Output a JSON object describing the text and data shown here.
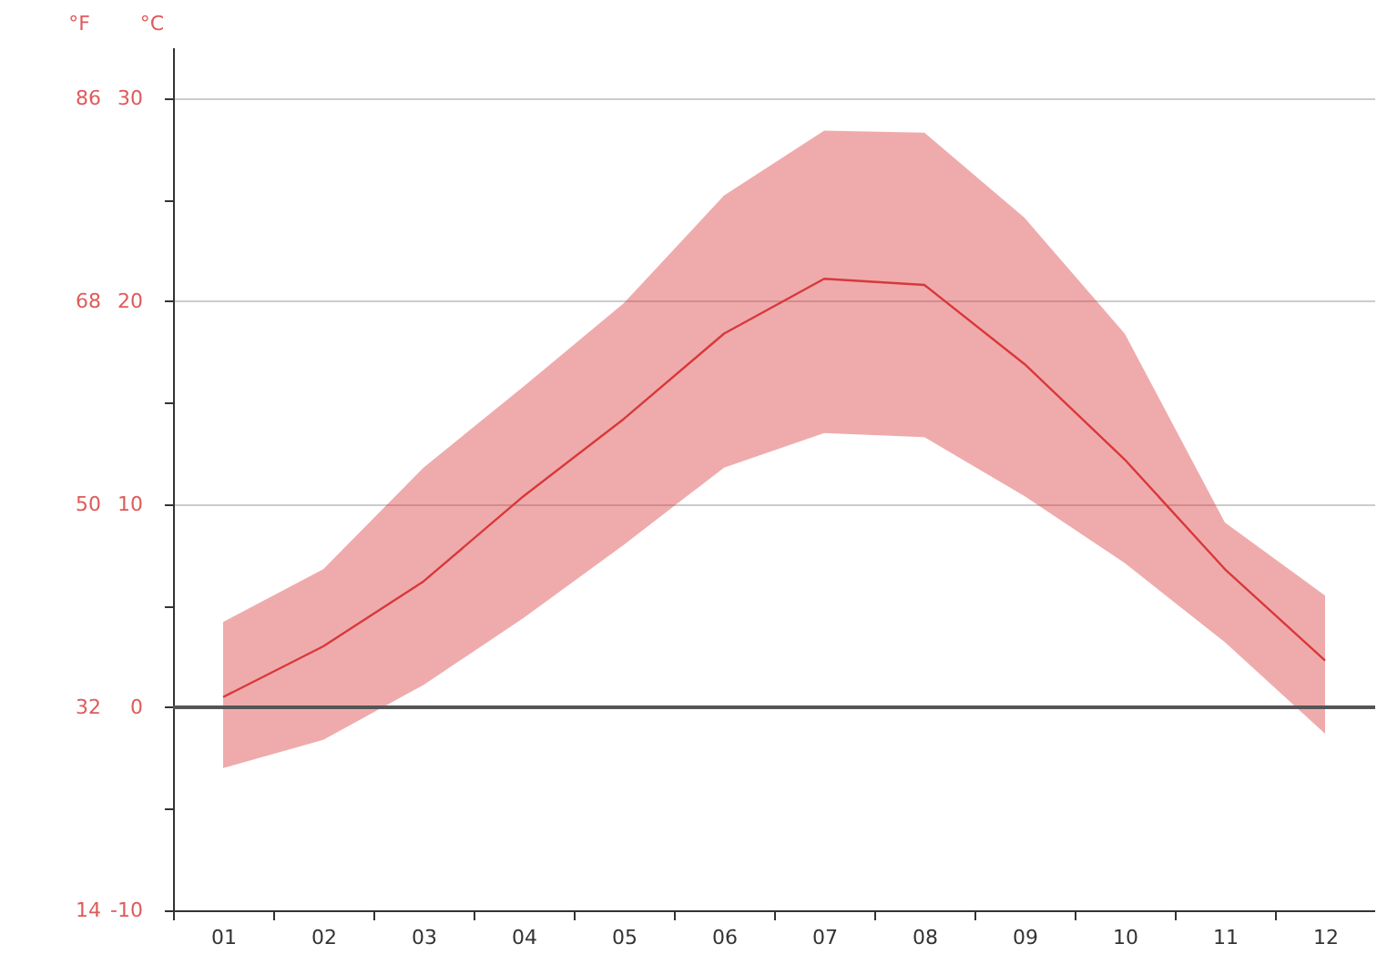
{
  "chart_data": {
    "type": "line",
    "xlabel": null,
    "ylabel": "°C",
    "y2label": "°F",
    "categories": [
      "01",
      "02",
      "03",
      "04",
      "05",
      "06",
      "07",
      "08",
      "09",
      "10",
      "11",
      "12"
    ],
    "series": [
      {
        "color": "#d9383a",
        "axis": "y",
        "values": [
          0.5,
          3.0,
          6.2,
          10.4,
          14.2,
          18.4,
          21.1,
          20.8,
          16.9,
          12.2,
          6.8,
          2.3
        ],
        "lower": [
          -3.0,
          -1.6,
          1.1,
          4.4,
          8.0,
          11.8,
          13.5,
          13.3,
          10.4,
          7.1,
          3.2,
          -1.3
        ],
        "upper": [
          4.2,
          6.8,
          11.8,
          15.8,
          19.9,
          25.2,
          28.4,
          28.3,
          24.1,
          18.4,
          9.1,
          5.5
        ]
      }
    ],
    "ylim": [
      -10,
      32.5
    ],
    "yticks": [
      -10,
      {
        "value": -5,
        "label": null
      },
      0,
      {
        "value": 5,
        "label": null
      },
      10,
      {
        "value": 15,
        "label": null
      },
      20,
      {
        "value": 25,
        "label": null
      },
      30
    ],
    "y2lim": [
      14,
      90.5
    ],
    "y2ticks": [
      14,
      32,
      50,
      68,
      86
    ],
    "ref_lines": [
      {
        "axis": "y",
        "value": 0,
        "color": "#555555"
      }
    ],
    "grid": "y",
    "marker": "none",
    "line_style": "solid"
  }
}
